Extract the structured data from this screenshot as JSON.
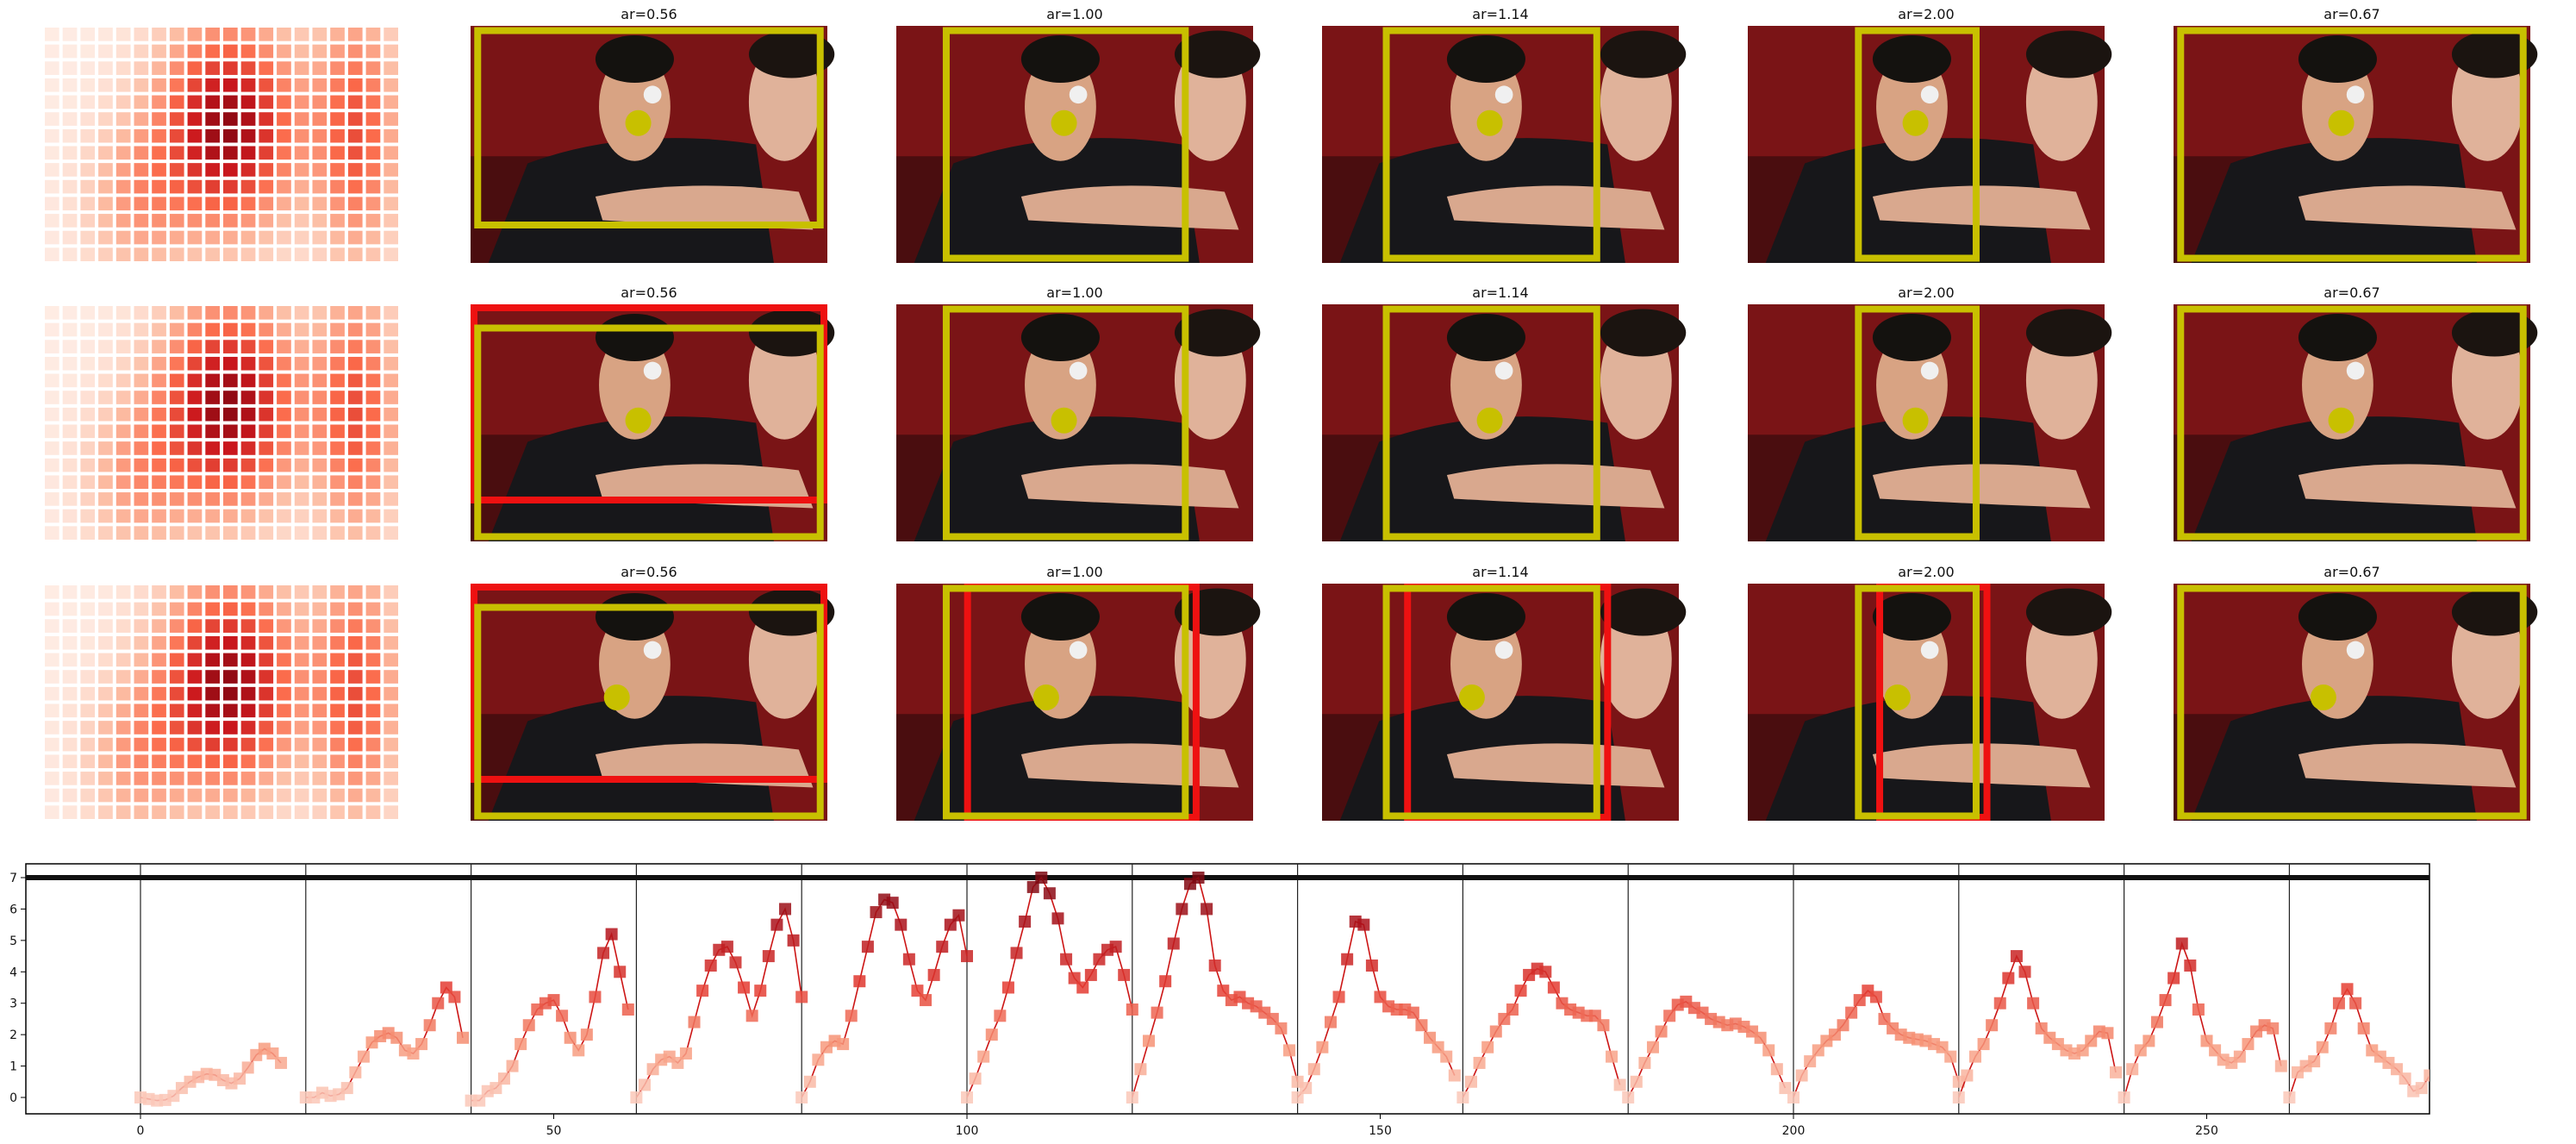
{
  "colors": {
    "box_yellow": "#c8c000",
    "box_red": "#ee1111",
    "dot_yellow": "#c8c000",
    "line_red": "#cc1515",
    "marker_light": "#f7b7a0",
    "marker_dark": "#8f1018",
    "photo_background": "#7a1416",
    "jersey": "#17171a"
  },
  "grid": {
    "rows": [
      {
        "heatmap_icon": "heatmap-thumbnail",
        "panels": [
          {
            "title": "ar=0.56",
            "image_icon": "table-tennis-players-photo",
            "boxes": [
              "yellow"
            ]
          },
          {
            "title": "ar=1.00",
            "image_icon": "table-tennis-players-photo",
            "boxes": [
              "yellow"
            ]
          },
          {
            "title": "ar=1.14",
            "image_icon": "table-tennis-players-photo",
            "boxes": [
              "yellow"
            ]
          },
          {
            "title": "ar=2.00",
            "image_icon": "table-tennis-players-photo",
            "boxes": [
              "yellow"
            ]
          },
          {
            "title": "ar=0.67",
            "image_icon": "table-tennis-players-photo",
            "boxes": [
              "yellow"
            ]
          }
        ]
      },
      {
        "heatmap_icon": "heatmap-thumbnail",
        "panels": [
          {
            "title": "ar=0.56",
            "image_icon": "table-tennis-players-photo",
            "boxes": [
              "red",
              "yellow"
            ]
          },
          {
            "title": "ar=1.00",
            "image_icon": "table-tennis-players-photo",
            "boxes": [
              "yellow"
            ]
          },
          {
            "title": "ar=1.14",
            "image_icon": "table-tennis-players-photo",
            "boxes": [
              "yellow"
            ]
          },
          {
            "title": "ar=2.00",
            "image_icon": "table-tennis-players-photo",
            "boxes": [
              "yellow"
            ]
          },
          {
            "title": "ar=0.67",
            "image_icon": "table-tennis-players-photo",
            "boxes": [
              "yellow"
            ]
          }
        ]
      },
      {
        "heatmap_icon": "heatmap-thumbnail",
        "panels": [
          {
            "title": "ar=0.56",
            "image_icon": "table-tennis-players-photo",
            "boxes": [
              "red",
              "yellow"
            ]
          },
          {
            "title": "ar=1.00",
            "image_icon": "table-tennis-players-photo",
            "boxes": [
              "red",
              "yellow"
            ]
          },
          {
            "title": "ar=1.14",
            "image_icon": "table-tennis-players-photo",
            "boxes": [
              "red",
              "yellow"
            ]
          },
          {
            "title": "ar=2.00",
            "image_icon": "table-tennis-players-photo",
            "boxes": [
              "red",
              "yellow"
            ]
          },
          {
            "title": "ar=0.67",
            "image_icon": "table-tennis-players-photo",
            "boxes": [
              "yellow"
            ]
          }
        ]
      }
    ]
  },
  "chart_data": {
    "type": "line",
    "title": "",
    "xlabel": "",
    "ylabel": "",
    "xlim": [
      -14,
      290
    ],
    "ylim": [
      -0.4,
      7.4
    ],
    "x_ticks": [
      0,
      50,
      100,
      150,
      200,
      250
    ],
    "x_tick_labels": [
      "0",
      "50",
      "100",
      "150",
      "200",
      "250"
    ],
    "y_ticks": [
      0,
      1,
      2,
      3,
      4,
      5,
      6,
      7
    ],
    "y_tick_labels": [
      "0",
      "1",
      "2",
      "3",
      "4",
      "5",
      "6",
      "7"
    ],
    "reference_line": {
      "y": 7.0,
      "color": "#111111"
    },
    "vertical_separators": [
      0,
      20,
      40,
      60,
      80,
      100,
      120,
      140,
      160,
      180,
      200,
      220,
      240,
      260
    ],
    "marker_shape": "square",
    "colormap": "Reds",
    "grid": false,
    "segments": [
      [
        0.0,
        -0.05,
        -0.1,
        -0.08,
        0.05,
        0.3,
        0.5,
        0.65,
        0.75,
        0.72,
        0.55,
        0.45,
        0.6,
        0.95,
        1.35,
        1.55,
        1.4,
        1.1
      ],
      [
        0.0,
        0.0,
        0.15,
        0.05,
        0.1,
        0.3,
        0.8,
        1.3,
        1.75,
        1.95,
        2.05,
        1.9,
        1.5,
        1.4,
        1.7,
        2.3,
        3.0,
        3.5,
        3.2,
        1.9
      ],
      [
        -0.1,
        -0.1,
        0.2,
        0.3,
        0.6,
        1.0,
        1.7,
        2.3,
        2.8,
        3.0,
        3.1,
        2.6,
        1.9,
        1.5,
        2.0,
        3.2,
        4.6,
        5.2,
        4.0,
        2.8
      ],
      [
        0.0,
        0.4,
        0.9,
        1.2,
        1.3,
        1.1,
        1.4,
        2.4,
        3.4,
        4.2,
        4.7,
        4.8,
        4.3,
        3.5,
        2.6,
        3.4,
        4.5,
        5.5,
        6.0,
        5.0,
        3.2
      ],
      [
        0.0,
        0.5,
        1.2,
        1.6,
        1.8,
        1.7,
        2.6,
        3.7,
        4.8,
        5.9,
        6.3,
        6.2,
        5.5,
        4.4,
        3.4,
        3.1,
        3.9,
        4.8,
        5.5,
        5.8,
        4.5
      ],
      [
        0.0,
        0.6,
        1.3,
        2.0,
        2.6,
        3.5,
        4.6,
        5.6,
        6.7,
        7.0,
        6.5,
        5.7,
        4.4,
        3.8,
        3.5,
        3.9,
        4.4,
        4.7,
        4.8,
        3.9,
        2.8
      ],
      [
        0.0,
        0.9,
        1.8,
        2.7,
        3.7,
        4.9,
        6.0,
        6.8,
        7.0,
        6.0,
        4.2,
        3.4,
        3.1,
        3.2,
        3.0,
        2.9,
        2.7,
        2.5,
        2.2,
        1.5,
        0.5
      ],
      [
        0.0,
        0.3,
        0.9,
        1.6,
        2.4,
        3.2,
        4.4,
        5.6,
        5.5,
        4.2,
        3.2,
        2.9,
        2.8,
        2.8,
        2.7,
        2.3,
        1.9,
        1.6,
        1.3,
        0.7
      ],
      [
        0.0,
        0.5,
        1.1,
        1.6,
        2.1,
        2.5,
        2.8,
        3.4,
        3.9,
        4.1,
        4.0,
        3.5,
        3.0,
        2.8,
        2.7,
        2.6,
        2.6,
        2.3,
        1.3,
        0.4
      ],
      [
        0.0,
        0.5,
        1.1,
        1.6,
        2.1,
        2.6,
        2.95,
        3.05,
        2.85,
        2.7,
        2.5,
        2.4,
        2.3,
        2.35,
        2.25,
        2.1,
        1.9,
        1.5,
        0.9,
        0.3
      ],
      [
        0.0,
        0.7,
        1.15,
        1.5,
        1.8,
        2.0,
        2.3,
        2.7,
        3.1,
        3.4,
        3.2,
        2.5,
        2.2,
        2.0,
        1.9,
        1.85,
        1.8,
        1.7,
        1.6,
        1.3,
        0.5
      ],
      [
        0.0,
        0.7,
        1.3,
        1.7,
        2.3,
        3.0,
        3.8,
        4.5,
        4.0,
        3.0,
        2.2,
        1.9,
        1.7,
        1.5,
        1.4,
        1.5,
        1.8,
        2.1,
        2.05,
        0.8
      ],
      [
        0.0,
        0.9,
        1.5,
        1.8,
        2.4,
        3.1,
        3.8,
        4.9,
        4.2,
        2.8,
        1.8,
        1.5,
        1.2,
        1.1,
        1.3,
        1.7,
        2.1,
        2.3,
        2.2,
        1.0
      ],
      [
        0.0,
        0.8,
        1.0,
        1.15,
        1.6,
        2.2,
        3.0,
        3.45,
        3.0,
        2.2,
        1.5,
        1.3,
        1.1,
        0.9,
        0.6,
        0.2,
        0.3,
        0.7,
        1.05,
        1.3,
        1.1
      ]
    ]
  }
}
